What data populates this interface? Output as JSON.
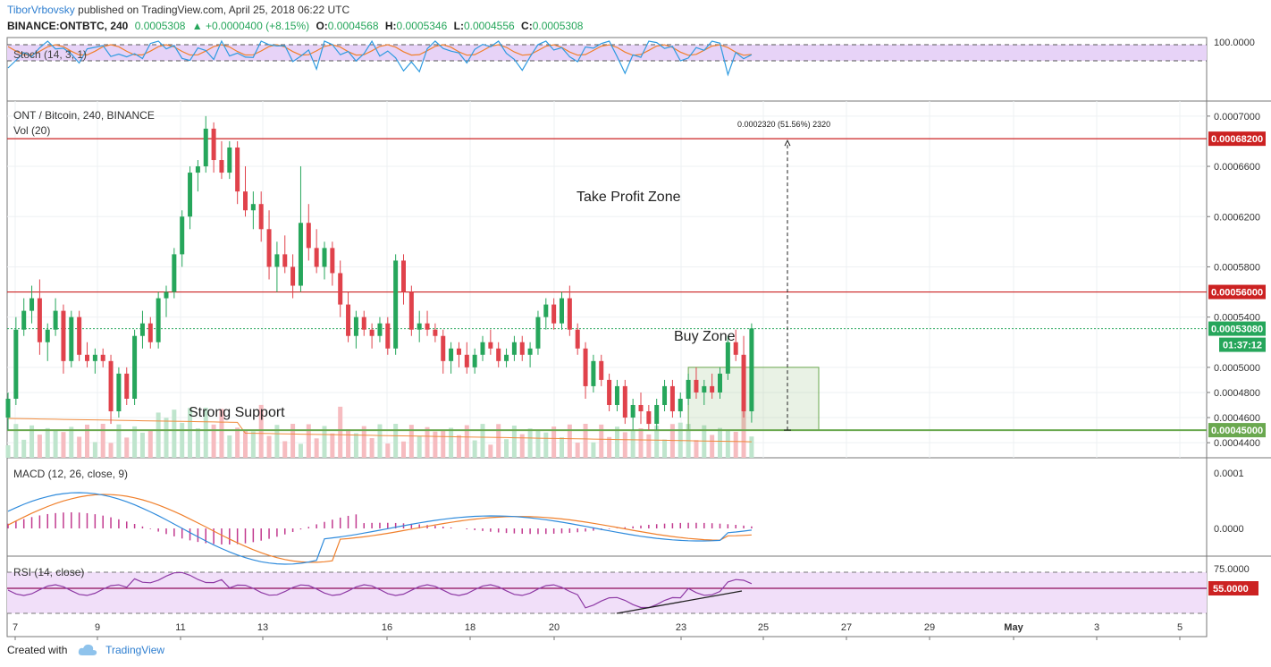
{
  "header": {
    "author": "TiborVrbovsky",
    "published": "published on TradingView.com, April 25, 2018 06:22 UTC",
    "symbol": "BINANCE:ONTBTC, 240",
    "last": "0.0005308",
    "change_arrow": "▲",
    "change": "+0.0000400 (+8.15%)",
    "o_label": "O:",
    "o": "0.0004568",
    "h_label": "H:",
    "h": "0.0005346",
    "l_label": "L:",
    "l": "0.0004556",
    "c_label": "C:",
    "c": "0.0005308"
  },
  "panes": {
    "stoch": {
      "label": "Stoch (14, 3, 1)",
      "axis_top": "100.0000"
    },
    "main": {
      "label": "ONT / Bitcoin, 240, BINANCE",
      "vol_label": "Vol (20)"
    },
    "macd": {
      "label": "MACD (12, 26, close, 9)",
      "ticks": [
        "0.0001",
        "0.0000"
      ]
    },
    "rsi": {
      "label": "RSI (14, close)",
      "ticks": [
        "75.0000"
      ],
      "level_badge": "55.0000"
    }
  },
  "annotations": {
    "take_profit": "Take Profit Zone",
    "buy_zone": "Buy Zone",
    "strong_support": "Strong Support",
    "measure": "0.0002320 (51.56%) 2320"
  },
  "colors": {
    "up": "#26a65b",
    "down": "#e0424b",
    "level_line": "#cc2222",
    "support_line": "#6aa84f",
    "stoch_band": "#e7d3f7",
    "stoch_k": "#2f9be0",
    "stoch_d": "#f0802c",
    "macd_line": "#2f8bdc",
    "signal_line": "#f0802c",
    "histogram": "#c23a8f",
    "rsi_line": "#8e3aa5",
    "rsi_band": "#f1dff9",
    "rsi_level": "#8e0b5a",
    "last_price": "#26a65b",
    "trend_line": "#222222"
  },
  "footer": {
    "created_with": "Created with",
    "brand": "TradingView"
  },
  "chart_data": {
    "type": "candlestick",
    "title": "ONT / Bitcoin, 240, BINANCE",
    "x_ticks": [
      "7",
      "9",
      "11",
      "13",
      "16",
      "18",
      "20",
      "23",
      "25",
      "27",
      "29",
      "May",
      "3",
      "5"
    ],
    "y_ticks": [
      "0.0007000",
      "0.0006600",
      "0.0006200",
      "0.0005800",
      "0.0005400",
      "0.0005000",
      "0.0004800",
      "0.0004600",
      "0.0004400"
    ],
    "ylim": [
      0.000428,
      0.000712
    ],
    "resistance_levels": [
      0.000682,
      0.00056
    ],
    "support_level": 0.00045,
    "last_price": 0.0005308,
    "price_badges": [
      "0.00068200",
      "0.00056000",
      "0.00053080",
      "0.00045000"
    ],
    "countdown_badge": "01:37:12",
    "measure_from": 0.00045,
    "measure_to": 0.000682,
    "buy_zone": {
      "from": 0.00045,
      "to": 0.0005
    },
    "candles_ohlc": [
      [
        0.00046,
        0.00048,
        0.00045,
        0.000475
      ],
      [
        0.000475,
        0.00054,
        0.00047,
        0.00053
      ],
      [
        0.00053,
        0.000555,
        0.000525,
        0.000545
      ],
      [
        0.000545,
        0.000565,
        0.000535,
        0.000555
      ],
      [
        0.000555,
        0.00057,
        0.00051,
        0.00052
      ],
      [
        0.00052,
        0.000535,
        0.000505,
        0.00053
      ],
      [
        0.00053,
        0.000555,
        0.000525,
        0.000545
      ],
      [
        0.000545,
        0.00055,
        0.000495,
        0.000505
      ],
      [
        0.000505,
        0.000545,
        0.0005,
        0.00054
      ],
      [
        0.00054,
        0.000545,
        0.000505,
        0.00051
      ],
      [
        0.00051,
        0.00052,
        0.0005,
        0.000505
      ],
      [
        0.000505,
        0.000515,
        0.000495,
        0.00051
      ],
      [
        0.00051,
        0.000515,
        0.0005,
        0.000505
      ],
      [
        0.000505,
        0.00051,
        0.000455,
        0.000465
      ],
      [
        0.000465,
        0.0005,
        0.00046,
        0.000495
      ],
      [
        0.000495,
        0.0005,
        0.00047,
        0.000475
      ],
      [
        0.000475,
        0.00053,
        0.00047,
        0.000525
      ],
      [
        0.000525,
        0.000545,
        0.000515,
        0.000535
      ],
      [
        0.000535,
        0.00054,
        0.000515,
        0.00052
      ],
      [
        0.00052,
        0.00056,
        0.000515,
        0.000555
      ],
      [
        0.000555,
        0.000565,
        0.00054,
        0.00056
      ],
      [
        0.00056,
        0.000595,
        0.000555,
        0.00059
      ],
      [
        0.00059,
        0.000625,
        0.00058,
        0.00062
      ],
      [
        0.00062,
        0.00066,
        0.00061,
        0.000655
      ],
      [
        0.000655,
        0.000665,
        0.00064,
        0.00066
      ],
      [
        0.00066,
        0.0007,
        0.000655,
        0.00069
      ],
      [
        0.00069,
        0.000695,
        0.000655,
        0.000665
      ],
      [
        0.000665,
        0.00068,
        0.00065,
        0.000655
      ],
      [
        0.000655,
        0.00068,
        0.00065,
        0.000675
      ],
      [
        0.000675,
        0.00068,
        0.00063,
        0.00064
      ],
      [
        0.00064,
        0.00066,
        0.00062,
        0.000625
      ],
      [
        0.000625,
        0.00064,
        0.00061,
        0.00063
      ],
      [
        0.00063,
        0.00064,
        0.0006,
        0.00061
      ],
      [
        0.00061,
        0.000625,
        0.00057,
        0.00058
      ],
      [
        0.00058,
        0.0006,
        0.00056,
        0.00059
      ],
      [
        0.00059,
        0.000605,
        0.000575,
        0.00058
      ],
      [
        0.00058,
        0.00059,
        0.000555,
        0.000565
      ],
      [
        0.000565,
        0.00066,
        0.00056,
        0.000615
      ],
      [
        0.000615,
        0.00063,
        0.000585,
        0.000595
      ],
      [
        0.000595,
        0.00061,
        0.000575,
        0.00058
      ],
      [
        0.00058,
        0.0006,
        0.00057,
        0.000595
      ],
      [
        0.000595,
        0.0006,
        0.000565,
        0.000575
      ],
      [
        0.000575,
        0.000585,
        0.00054,
        0.00055
      ],
      [
        0.00055,
        0.00056,
        0.00052,
        0.000525
      ],
      [
        0.000525,
        0.000545,
        0.000515,
        0.00054
      ],
      [
        0.00054,
        0.000545,
        0.000525,
        0.00053
      ],
      [
        0.00053,
        0.000535,
        0.000515,
        0.000525
      ],
      [
        0.000525,
        0.00054,
        0.00052,
        0.000535
      ],
      [
        0.000535,
        0.00054,
        0.00051,
        0.000515
      ],
      [
        0.000515,
        0.00059,
        0.00051,
        0.000585
      ],
      [
        0.000585,
        0.00059,
        0.00055,
        0.00056
      ],
      [
        0.00056,
        0.000565,
        0.000525,
        0.00053
      ],
      [
        0.00053,
        0.000545,
        0.00052,
        0.000535
      ],
      [
        0.000535,
        0.000545,
        0.000525,
        0.00053
      ],
      [
        0.00053,
        0.000535,
        0.00052,
        0.000525
      ],
      [
        0.000525,
        0.00053,
        0.000495,
        0.000505
      ],
      [
        0.000505,
        0.00052,
        0.000495,
        0.000515
      ],
      [
        0.000515,
        0.00052,
        0.0005,
        0.00051
      ],
      [
        0.00051,
        0.00052,
        0.000495,
        0.0005
      ],
      [
        0.0005,
        0.000515,
        0.000495,
        0.00051
      ],
      [
        0.00051,
        0.000525,
        0.000505,
        0.00052
      ],
      [
        0.00052,
        0.00053,
        0.00051,
        0.000515
      ],
      [
        0.000515,
        0.00052,
        0.0005,
        0.000505
      ],
      [
        0.000505,
        0.000515,
        0.0005,
        0.00051
      ],
      [
        0.00051,
        0.000525,
        0.000505,
        0.00052
      ],
      [
        0.00052,
        0.000525,
        0.000505,
        0.00051
      ],
      [
        0.00051,
        0.00052,
        0.0005,
        0.000515
      ],
      [
        0.000515,
        0.000545,
        0.00051,
        0.00054
      ],
      [
        0.00054,
        0.000555,
        0.00053,
        0.00055
      ],
      [
        0.00055,
        0.000555,
        0.00053,
        0.000535
      ],
      [
        0.000535,
        0.00056,
        0.00053,
        0.000555
      ],
      [
        0.000555,
        0.000565,
        0.000525,
        0.00053
      ],
      [
        0.00053,
        0.000535,
        0.00051,
        0.000515
      ],
      [
        0.000515,
        0.00052,
        0.000475,
        0.000485
      ],
      [
        0.000485,
        0.00051,
        0.00048,
        0.000505
      ],
      [
        0.000505,
        0.00051,
        0.000485,
        0.00049
      ],
      [
        0.00049,
        0.000495,
        0.000465,
        0.00047
      ],
      [
        0.00047,
        0.00049,
        0.000465,
        0.000485
      ],
      [
        0.000485,
        0.00049,
        0.000455,
        0.00046
      ],
      [
        0.00046,
        0.000475,
        0.00045,
        0.00047
      ],
      [
        0.00047,
        0.00048,
        0.000455,
        0.000465
      ],
      [
        0.000465,
        0.00047,
        0.00045,
        0.000455
      ],
      [
        0.000455,
        0.000475,
        0.00045,
        0.00047
      ],
      [
        0.00047,
        0.00049,
        0.000465,
        0.000485
      ],
      [
        0.000485,
        0.00049,
        0.00046,
        0.000465
      ],
      [
        0.000465,
        0.00048,
        0.00046,
        0.000475
      ],
      [
        0.000475,
        0.000495,
        0.00047,
        0.00049
      ],
      [
        0.00049,
        0.0005,
        0.000475,
        0.00048
      ],
      [
        0.00048,
        0.00049,
        0.00047,
        0.000485
      ],
      [
        0.000485,
        0.000495,
        0.000475,
        0.00048
      ],
      [
        0.00048,
        0.0005,
        0.000475,
        0.000495
      ],
      [
        0.000495,
        0.000525,
        0.00049,
        0.00052
      ],
      [
        0.00052,
        0.00053,
        0.000505,
        0.00051
      ],
      [
        0.00051,
        0.000525,
        0.00046,
        0.000465
      ],
      [
        0.000465,
        0.000535,
        0.000456,
        0.000531
      ]
    ]
  }
}
